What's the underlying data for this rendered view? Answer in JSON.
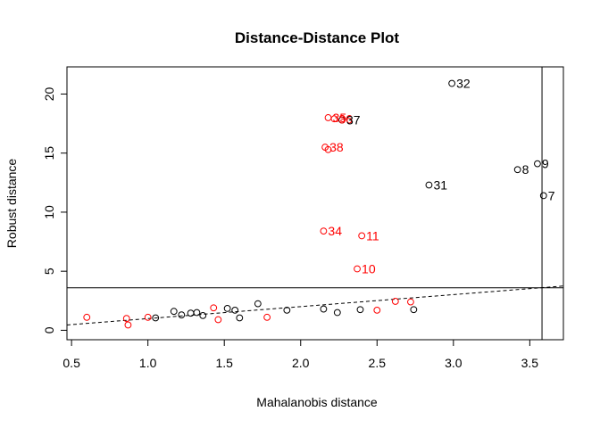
{
  "chart_data": {
    "type": "scatter",
    "title": "Distance-Distance Plot",
    "xlabel": "Mahalanobis distance",
    "ylabel": "Robust distance",
    "xlim": [
      0.47,
      3.72
    ],
    "ylim": [
      -0.8,
      22.3
    ],
    "x_ticks": [
      "0.5",
      "1.0",
      "1.5",
      "2.0",
      "2.5",
      "3.0",
      "3.5"
    ],
    "y_ticks": [
      "0",
      "5",
      "10",
      "15",
      "20"
    ],
    "cutoff_x": 3.58,
    "cutoff_y": 3.6,
    "reference_line": {
      "style": "dashed",
      "x": [
        0.47,
        3.72
      ],
      "y": [
        0.45,
        3.75
      ]
    },
    "colors": {
      "regular": "#000000",
      "outlier": "#ff0000"
    },
    "points": [
      {
        "x": 0.6,
        "y": 1.1,
        "color": "#ff0000"
      },
      {
        "x": 0.86,
        "y": 1.0,
        "color": "#ff0000"
      },
      {
        "x": 0.87,
        "y": 0.45,
        "color": "#ff0000"
      },
      {
        "x": 1.0,
        "y": 1.1,
        "color": "#ff0000"
      },
      {
        "x": 1.05,
        "y": 1.05,
        "color": "#000000"
      },
      {
        "x": 1.17,
        "y": 1.6,
        "color": "#000000"
      },
      {
        "x": 1.22,
        "y": 1.3,
        "color": "#000000"
      },
      {
        "x": 1.28,
        "y": 1.45,
        "color": "#000000"
      },
      {
        "x": 1.32,
        "y": 1.5,
        "color": "#000000"
      },
      {
        "x": 1.36,
        "y": 1.25,
        "color": "#000000"
      },
      {
        "x": 1.43,
        "y": 1.9,
        "color": "#ff0000"
      },
      {
        "x": 1.46,
        "y": 0.9,
        "color": "#ff0000"
      },
      {
        "x": 1.52,
        "y": 1.85,
        "color": "#000000"
      },
      {
        "x": 1.57,
        "y": 1.7,
        "color": "#000000"
      },
      {
        "x": 1.6,
        "y": 1.05,
        "color": "#000000"
      },
      {
        "x": 1.72,
        "y": 2.25,
        "color": "#000000"
      },
      {
        "x": 1.78,
        "y": 1.1,
        "color": "#ff0000"
      },
      {
        "x": 1.91,
        "y": 1.7,
        "color": "#000000"
      },
      {
        "x": 2.15,
        "y": 1.8,
        "color": "#000000"
      },
      {
        "x": 2.24,
        "y": 1.5,
        "color": "#000000"
      },
      {
        "x": 2.39,
        "y": 1.75,
        "color": "#000000"
      },
      {
        "x": 2.5,
        "y": 1.7,
        "color": "#ff0000"
      },
      {
        "x": 2.62,
        "y": 2.45,
        "color": "#ff0000"
      },
      {
        "x": 2.72,
        "y": 2.4,
        "color": "#ff0000"
      },
      {
        "x": 2.74,
        "y": 1.75,
        "color": "#000000"
      },
      {
        "x": 2.15,
        "y": 8.4,
        "color": "#ff0000",
        "label": "34"
      },
      {
        "x": 2.4,
        "y": 8.0,
        "color": "#ff0000",
        "label": "11"
      },
      {
        "x": 2.37,
        "y": 5.2,
        "color": "#ff0000",
        "label": "10"
      },
      {
        "x": 2.16,
        "y": 15.5,
        "color": "#ff0000",
        "label": "38"
      },
      {
        "x": 2.18,
        "y": 15.3,
        "color": "#ff0000"
      },
      {
        "x": 2.18,
        "y": 18.0,
        "color": "#ff0000",
        "label": "35"
      },
      {
        "x": 2.22,
        "y": 17.9,
        "color": "#ff0000",
        "label": "36"
      },
      {
        "x": 2.27,
        "y": 17.8,
        "color": "#000000",
        "label": "37"
      },
      {
        "x": 2.99,
        "y": 20.9,
        "color": "#000000",
        "label": "32"
      },
      {
        "x": 2.84,
        "y": 12.3,
        "color": "#000000",
        "label": "31"
      },
      {
        "x": 3.42,
        "y": 13.6,
        "color": "#000000",
        "label": "8"
      },
      {
        "x": 3.55,
        "y": 14.1,
        "color": "#000000",
        "label": "9"
      },
      {
        "x": 3.59,
        "y": 11.4,
        "color": "#000000",
        "label": "7"
      }
    ]
  }
}
